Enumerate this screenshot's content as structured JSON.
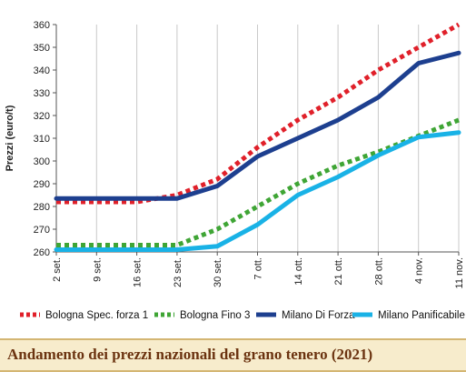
{
  "footer": {
    "title": "Andamento dei prezzi nazionali del grano tenero (2021)"
  },
  "chart_data": {
    "type": "line",
    "ylabel": "Prezzi (euro/t)",
    "xlabel": "",
    "title": "",
    "ylim": [
      260,
      360
    ],
    "yticks": [
      260,
      270,
      280,
      290,
      300,
      310,
      320,
      330,
      340,
      350,
      360
    ],
    "grid": "vertical",
    "legend_position": "bottom",
    "categories": [
      "2 set.",
      "9 set.",
      "16 set.",
      "23 set.",
      "30 set.",
      "7 ott.",
      "14 ott.",
      "21 ott.",
      "28 ott.",
      "4 nov.",
      "11 nov."
    ],
    "series": [
      {
        "name": "Bologna Spec. forza 1",
        "color": "#e0202a",
        "style": "dotted",
        "values": [
          282,
          282,
          282,
          285,
          292,
          306,
          318,
          328,
          340,
          350,
          360
        ]
      },
      {
        "name": "Bologna Fino 3",
        "color": "#3fa535",
        "style": "dotted",
        "values": [
          263,
          263,
          263,
          263,
          270,
          280,
          290,
          298,
          304,
          311,
          318
        ]
      },
      {
        "name": "Milano Di Forza",
        "color": "#1d3f8f",
        "style": "solid",
        "values": [
          283.5,
          283.5,
          283.5,
          283.5,
          289,
          302,
          310,
          318,
          328,
          343,
          347.5
        ]
      },
      {
        "name": "Milano Panificabile",
        "color": "#19b2e6",
        "style": "solid",
        "values": [
          261,
          261,
          261,
          261,
          262.5,
          272,
          285,
          293,
          302.5,
          310.5,
          312.5
        ]
      }
    ]
  }
}
